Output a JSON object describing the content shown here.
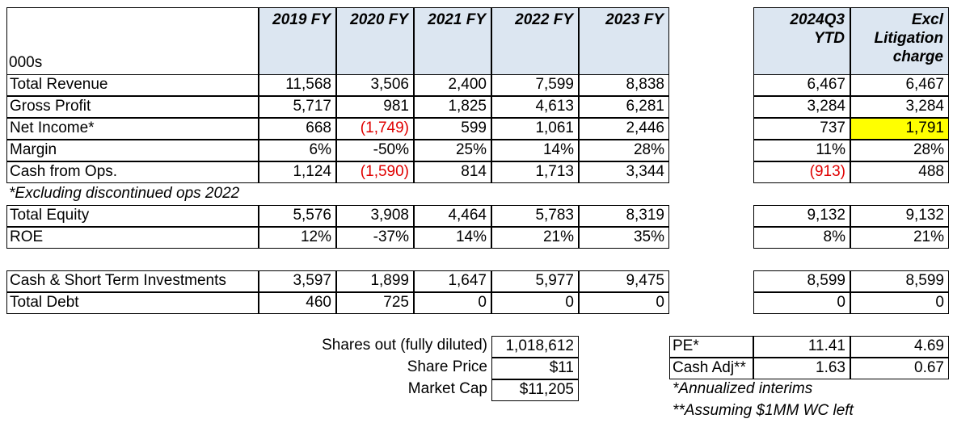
{
  "units_label": "000s",
  "headers": {
    "fy": [
      "2019 FY",
      "2020 FY",
      "2021 FY",
      "2022 FY",
      "2023 FY"
    ],
    "ytd": [
      "2024Q3",
      "YTD"
    ],
    "excl": [
      "Excl",
      "Litigation",
      "charge"
    ]
  },
  "rows_main": [
    {
      "label": "Total Revenue",
      "fy": [
        "11,568",
        "3,506",
        "2,400",
        "7,599",
        "8,838"
      ],
      "ytd": "6,467",
      "excl": "6,467"
    },
    {
      "label": "Gross Profit",
      "fy": [
        "5,717",
        "981",
        "1,825",
        "4,613",
        "6,281"
      ],
      "ytd": "3,284",
      "excl": "3,284"
    },
    {
      "label": "Net Income*",
      "fy": [
        "668",
        "(1,749)",
        "599",
        "1,061",
        "2,446"
      ],
      "ytd": "737",
      "excl": "1,791"
    },
    {
      "label": "Margin",
      "fy": [
        "6%",
        "-50%",
        "25%",
        "14%",
        "28%"
      ],
      "ytd": "11%",
      "excl": "28%"
    },
    {
      "label": "Cash from Ops.",
      "fy": [
        "1,124",
        "(1,590)",
        "814",
        "1,713",
        "3,344"
      ],
      "ytd": "(913)",
      "excl": "488"
    }
  ],
  "footnote_discontinued": "*Excluding discontinued ops 2022",
  "rows_equity": [
    {
      "label": "Total Equity",
      "fy": [
        "5,576",
        "3,908",
        "4,464",
        "5,783",
        "8,319"
      ],
      "ytd": "9,132",
      "excl": "9,132"
    },
    {
      "label": "ROE",
      "fy": [
        "12%",
        "-37%",
        "14%",
        "21%",
        "35%"
      ],
      "ytd": "8%",
      "excl": "21%"
    }
  ],
  "rows_cash": [
    {
      "label": "Cash & Short Term Investments",
      "fy": [
        "3,597",
        "1,899",
        "1,647",
        "5,977",
        "9,475"
      ],
      "ytd": "8,599",
      "excl": "8,599"
    },
    {
      "label": "Total Debt",
      "fy": [
        "460",
        "725",
        "0",
        "0",
        "0"
      ],
      "ytd": "0",
      "excl": "0"
    }
  ],
  "valuation": [
    {
      "label": "Shares out (fully diluted)",
      "value": "1,018,612"
    },
    {
      "label": "Share Price",
      "value": "$11"
    },
    {
      "label": "Market Cap",
      "value": "$11,205"
    }
  ],
  "ratios": [
    {
      "label": "PE*",
      "ytd": "11.41",
      "excl": "4.69"
    },
    {
      "label": "Cash Adj**",
      "ytd": "1.63",
      "excl": "0.67"
    }
  ],
  "notes": [
    "*Annualized interims",
    "**Assuming $1MM WC left"
  ],
  "colors": {
    "header_fill": "#dce6f1",
    "negative": "#e00000",
    "highlight": "#ffff00"
  }
}
